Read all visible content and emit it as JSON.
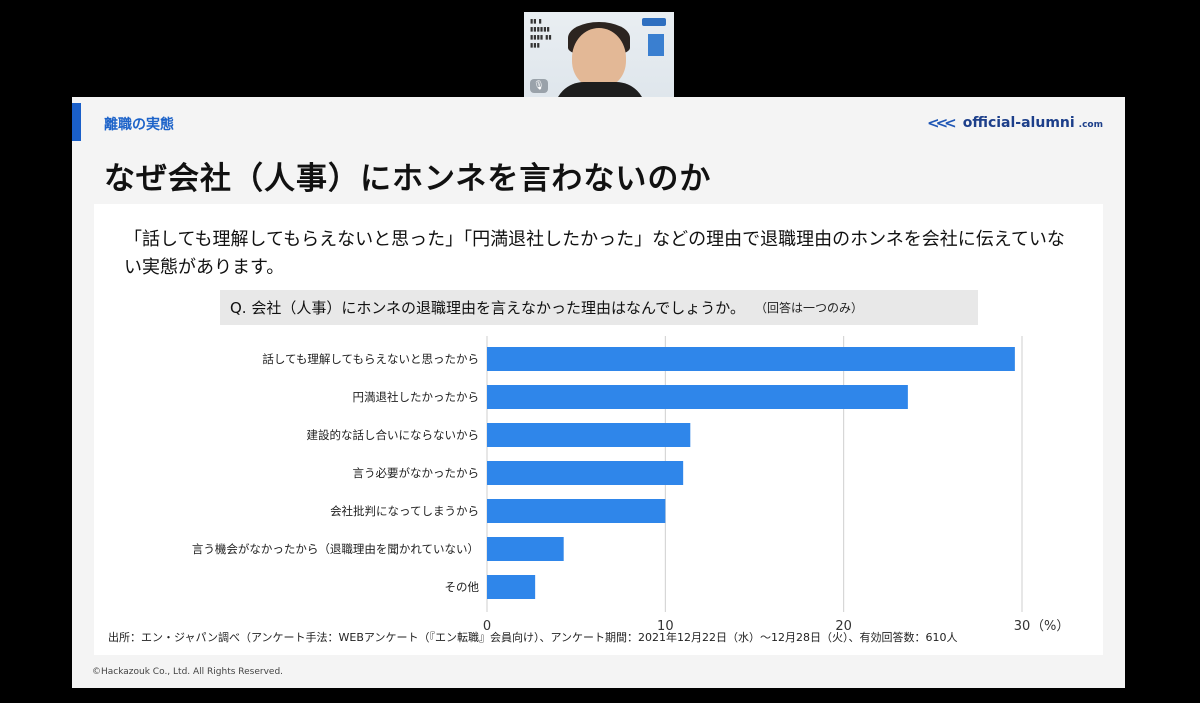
{
  "slide": {
    "section_label": "離職の実態",
    "brand": {
      "name": "official-alumni",
      "suffix": ".com"
    },
    "title": "なぜ会社（人事）にホンネを言わないのか",
    "intro": "「話しても理解してもらえないと思った」「円満退社したかった」などの理由で退職理由のホンネを会社に伝えていない実態があります。",
    "question": "Q. 会社（人事）にホンネの退職理由を言えなかった理由はなんでしょうか。",
    "question_note": "（回答は一つのみ）",
    "source": "出所：エン・ジャパン調べ（アンケート手法：WEBアンケート（『エン転職』会員向け）、アンケート期間：2021年12月22日（水）〜12月28日（火）、有効回答数：610人",
    "copyright": "©Hackazouk Co., Ltd. All Rights Reserved."
  },
  "chart_data": {
    "type": "bar",
    "orientation": "horizontal",
    "categories": [
      "話しても理解してもらえないと思ったから",
      "円満退社したかったから",
      "建設的な話し合いにならないから",
      "言う必要がなかったから",
      "会社批判になってしまうから",
      "言う機会がなかったから（退職理由を聞かれていない）",
      "その他"
    ],
    "values": [
      29.6,
      23.6,
      11.4,
      11.0,
      10.0,
      4.3,
      2.7
    ],
    "xlim": [
      0,
      30
    ],
    "ticks": [
      "0",
      "10",
      "20",
      "30"
    ],
    "unit_label": "（%）",
    "bar_color": "#2f86ea",
    "grid": "vertical"
  }
}
